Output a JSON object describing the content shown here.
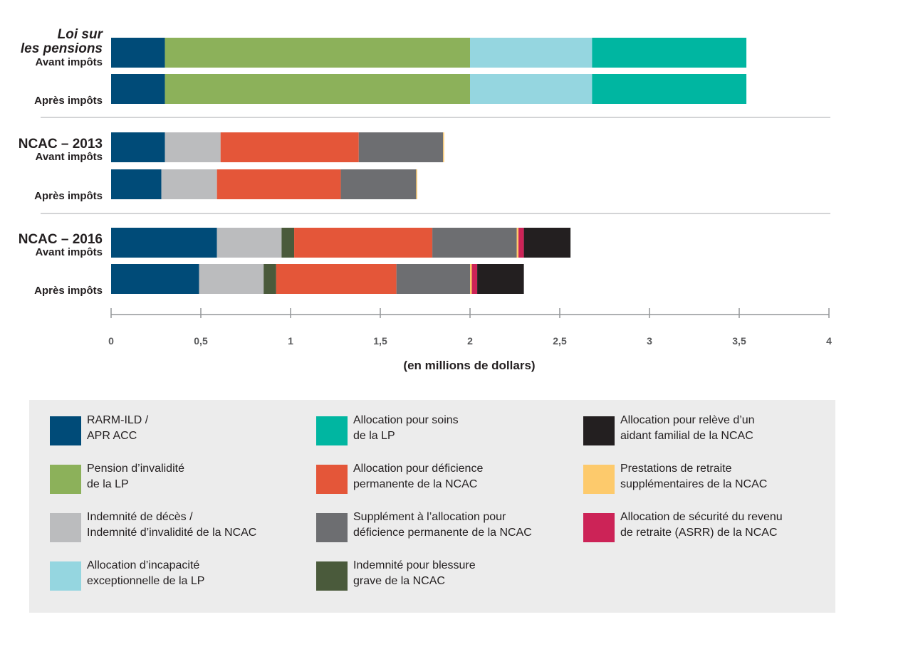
{
  "chart_data": {
    "type": "bar",
    "orientation": "horizontal",
    "stacked": true,
    "xlabel": "(en millions de dollars)",
    "xlim": [
      0,
      4
    ],
    "x_ticks": [
      "0",
      "0,5",
      "1",
      "1,5",
      "2",
      "2,5",
      "3",
      "3,5",
      "4"
    ],
    "x_tick_values": [
      0,
      0.5,
      1,
      1.5,
      2,
      2.5,
      3,
      3.5,
      4
    ],
    "groups": [
      {
        "title_lines": [
          "Loi sur",
          "les pensions"
        ],
        "italic": true,
        "rows": [
          "Avant impôts",
          "Après impôts"
        ]
      },
      {
        "title_lines": [
          "NCAC – 2013"
        ],
        "italic": false,
        "rows": [
          "Avant impôts",
          "Après impôts"
        ]
      },
      {
        "title_lines": [
          "NCAC – 2016"
        ],
        "italic": false,
        "rows": [
          "Avant impôts",
          "Après impôts"
        ]
      }
    ],
    "categories": [
      "Loi sur les pensions – Avant impôts",
      "Loi sur les pensions – Après impôts",
      "NCAC – 2013 – Avant impôts",
      "NCAC – 2013 – Après impôts",
      "NCAC – 2016 – Avant impôts",
      "NCAC – 2016 – Après impôts"
    ],
    "series": [
      {
        "name": "RARM-ILD / APR ACC",
        "color": "#004b78",
        "values": [
          0.3,
          0.3,
          0.3,
          0.28,
          0.59,
          0.49
        ]
      },
      {
        "name": "Pension d’invalidité de la LP",
        "color": "#8cb15a",
        "values": [
          1.7,
          1.7,
          0,
          0,
          0,
          0
        ]
      },
      {
        "name": "Indemnité de décès / Indemnité d’invalidité de la NCAC",
        "color": "#bbbcbe",
        "values": [
          0,
          0,
          0.31,
          0.31,
          0.36,
          0.36
        ]
      },
      {
        "name": "Allocation d’incapacité exceptionnelle de la LP",
        "color": "#95d6e0",
        "values": [
          0.68,
          0.68,
          0,
          0,
          0,
          0
        ]
      },
      {
        "name": "Allocation pour soins de la LP",
        "color": "#00b6a1",
        "values": [
          0.86,
          0.86,
          0,
          0,
          0,
          0
        ]
      },
      {
        "name": "Indemnité pour blessure grave de la NCAC",
        "color": "#4a5a3b",
        "values": [
          0,
          0,
          0,
          0,
          0.07,
          0.07
        ]
      },
      {
        "name": "Allocation pour déficience permanente de la NCAC",
        "color": "#e45639",
        "values": [
          0,
          0,
          0.77,
          0.69,
          0.77,
          0.67
        ]
      },
      {
        "name": "Supplément à l’allocation pour déficience permanente de la NCAC",
        "color": "#6d6e71",
        "values": [
          0,
          0,
          0.47,
          0.42,
          0.47,
          0.41
        ]
      },
      {
        "name": "Prestations de retraite supplémentaires de la NCAC",
        "color": "#fdca6c",
        "values": [
          0,
          0,
          0.005,
          0.005,
          0.01,
          0.01
        ]
      },
      {
        "name": "Allocation de sécurité du revenu de retraite (ASRR) de la NCAC",
        "color": "#cc2357",
        "values": [
          0,
          0,
          0,
          0,
          0.03,
          0.03
        ]
      },
      {
        "name": "Allocation pour relève d’un aidant familial de la NCAC",
        "color": "#231f20",
        "values": [
          0,
          0,
          0,
          0,
          0.26,
          0.26
        ]
      }
    ],
    "legend_position": "bottom",
    "grid": false
  },
  "legend": {
    "items": [
      {
        "lines": [
          "RARM-ILD /",
          "APR ACC"
        ],
        "color": "#004b78"
      },
      {
        "lines": [
          "Allocation pour soins",
          "de la LP"
        ],
        "color": "#00b6a1"
      },
      {
        "lines": [
          "Allocation pour relève d’un",
          "aidant familial de la NCAC"
        ],
        "color": "#231f20"
      },
      {
        "lines": [
          "Pension d’invalidité",
          "de la LP"
        ],
        "color": "#8cb15a"
      },
      {
        "lines": [
          "Allocation pour déficience",
          "permanente de la NCAC"
        ],
        "color": "#e45639"
      },
      {
        "lines": [
          "Prestations de retraite",
          "supplémentaires de la NCAC"
        ],
        "color": "#fdca6c"
      },
      {
        "lines": [
          "Indemnité de décès /",
          "Indemnité d’invalidité de la NCAC"
        ],
        "color": "#bbbcbe"
      },
      {
        "lines": [
          "Supplément à l’allocation pour",
          "déficience permanente de la NCAC"
        ],
        "color": "#6d6e71"
      },
      {
        "lines": [
          "Allocation de sécurité du revenu",
          "de retraite (ASRR) de la NCAC"
        ],
        "color": "#cc2357"
      },
      {
        "lines": [
          "Allocation d’incapacité",
          "exceptionnelle de la LP"
        ],
        "color": "#95d6e0"
      },
      {
        "lines": [
          "Indemnité pour blessure",
          "grave de la NCAC"
        ],
        "color": "#4a5a3b"
      }
    ]
  }
}
